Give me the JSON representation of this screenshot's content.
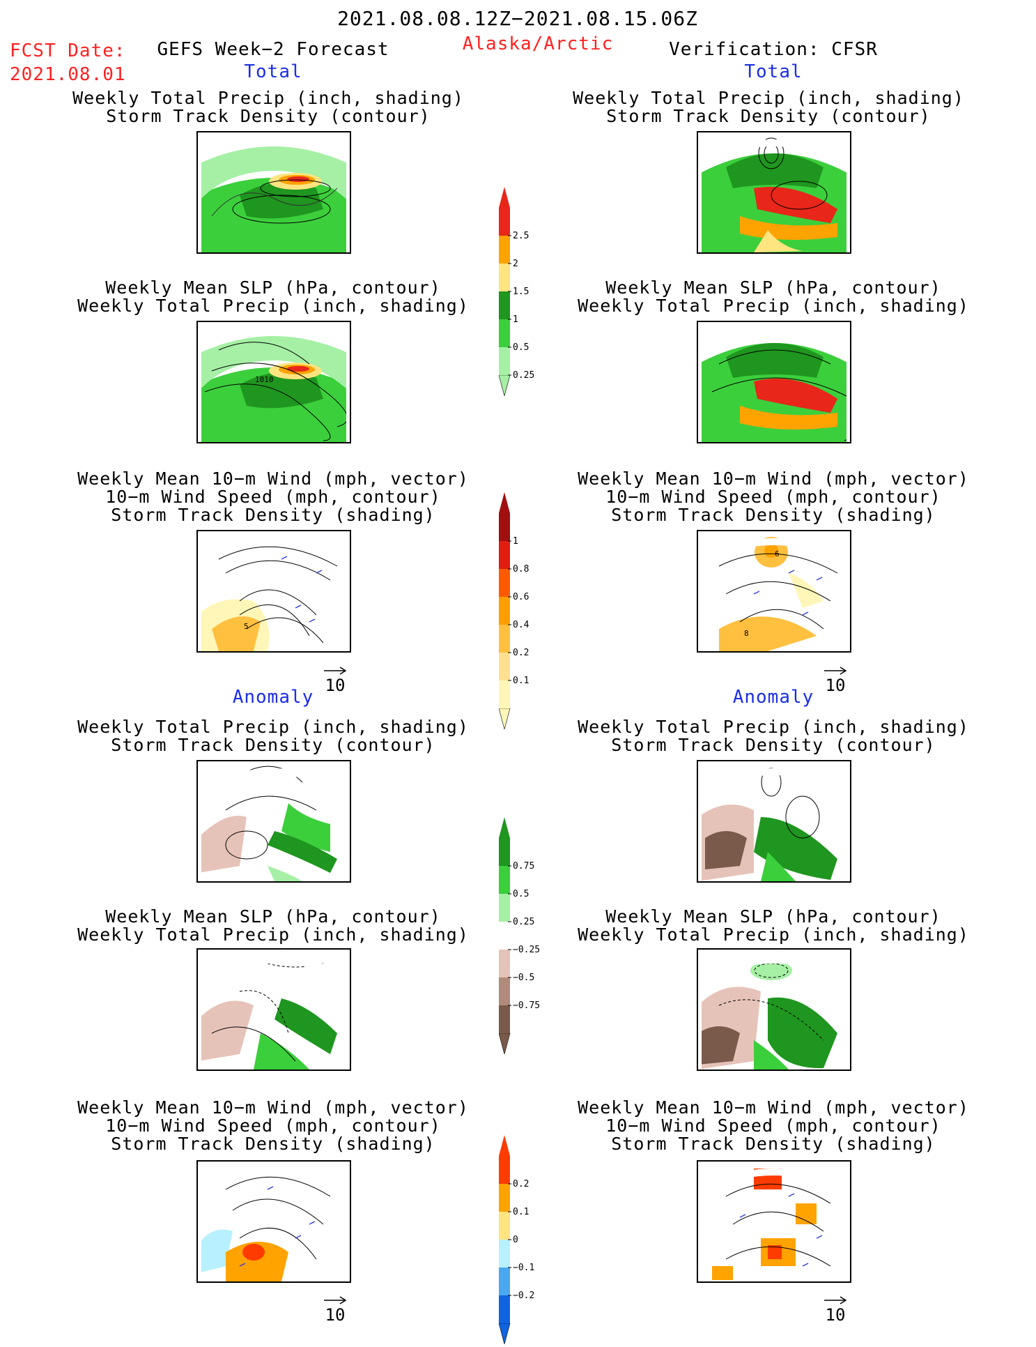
{
  "header": {
    "date_range": "2021.08.08.12Z−2021.08.15.06Z",
    "fcst_label": "FCST Date:",
    "fcst_date": "2021.08.01",
    "forecast_title": "GEFS Week−2 Forecast",
    "region": "Alaska/Arctic",
    "verification": "Verification: CFSR"
  },
  "sections": {
    "total": "Total",
    "anomaly": "Anomaly"
  },
  "panel_titles": {
    "precip_track": [
      "Weekly Total Precip (inch, shading)",
      "Storm Track Density (contour)"
    ],
    "slp_precip": [
      "Weekly Mean SLP (hPa, contour)",
      "Weekly Total Precip (inch, shading)"
    ],
    "wind": [
      "Weekly Mean 10−m Wind (mph, vector)",
      "10−m Wind Speed (mph, contour)",
      "Storm Track Density (shading)"
    ]
  },
  "map_labels": {
    "slp_contour": "1010",
    "track_total_left": "5",
    "track_total_right_a": "6",
    "track_total_right_b": "8"
  },
  "vector_reference": "10",
  "colorbars": [
    {
      "name": "total-precip",
      "labels": [
        "2.5",
        "2",
        "1.5",
        "1",
        "0.5",
        "0.25"
      ],
      "colors": [
        "#e8261a",
        "#ffa300",
        "#ffe480",
        "#1f961f",
        "#3ccf3c",
        "#a5f0a5"
      ]
    },
    {
      "name": "total-track",
      "labels": [
        "1",
        "0.8",
        "0.6",
        "0.4",
        "0.2",
        "0.1"
      ],
      "colors": [
        "#a01010",
        "#e01e10",
        "#ff5a00",
        "#ff9e00",
        "#ffc040",
        "#ffe090",
        "#fff6b8"
      ]
    },
    {
      "name": "anom-precip",
      "labels": [
        "0.75",
        "0.5",
        "0.25",
        "−0.25",
        "−0.5",
        "−0.75"
      ],
      "colors": [
        "#1f961f",
        "#3ccf3c",
        "#a5f0a5",
        "#ffffff",
        "#e6c3b9",
        "#b08a7a",
        "#7a5a4a"
      ]
    },
    {
      "name": "anom-track",
      "labels": [
        "0.2",
        "0.1",
        "0",
        "−0.1",
        "−0.2"
      ],
      "colors": [
        "#ff3c00",
        "#ffa300",
        "#ffe480",
        "#b8f0ff",
        "#4aa8f0",
        "#1064e0"
      ]
    }
  ]
}
